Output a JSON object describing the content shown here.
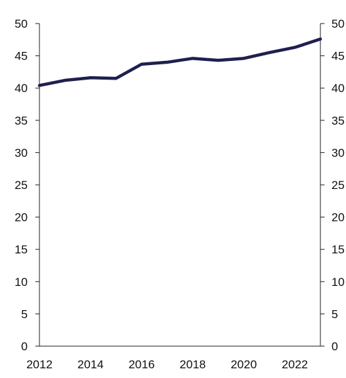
{
  "chart_data": {
    "type": "line",
    "title": "",
    "xlabel": "",
    "ylabel": "",
    "x": [
      2012,
      2013,
      2014,
      2015,
      2016,
      2017,
      2018,
      2019,
      2020,
      2021,
      2022,
      2023
    ],
    "series": [
      {
        "values": [
          40.4,
          41.2,
          41.6,
          41.5,
          43.7,
          44.0,
          44.6,
          44.3,
          44.6,
          45.5,
          46.3,
          47.6
        ],
        "color": "#1f1f4f"
      }
    ],
    "xlim": [
      2012,
      2023
    ],
    "ylim": [
      0,
      50
    ],
    "y_ticks": [
      0,
      5,
      10,
      15,
      20,
      25,
      30,
      35,
      40,
      45,
      50
    ],
    "x_ticks": [
      2012,
      2014,
      2016,
      2018,
      2020,
      2022
    ],
    "y_axis_left": true,
    "y_axis_right": true,
    "grid": false,
    "legend": "none"
  }
}
